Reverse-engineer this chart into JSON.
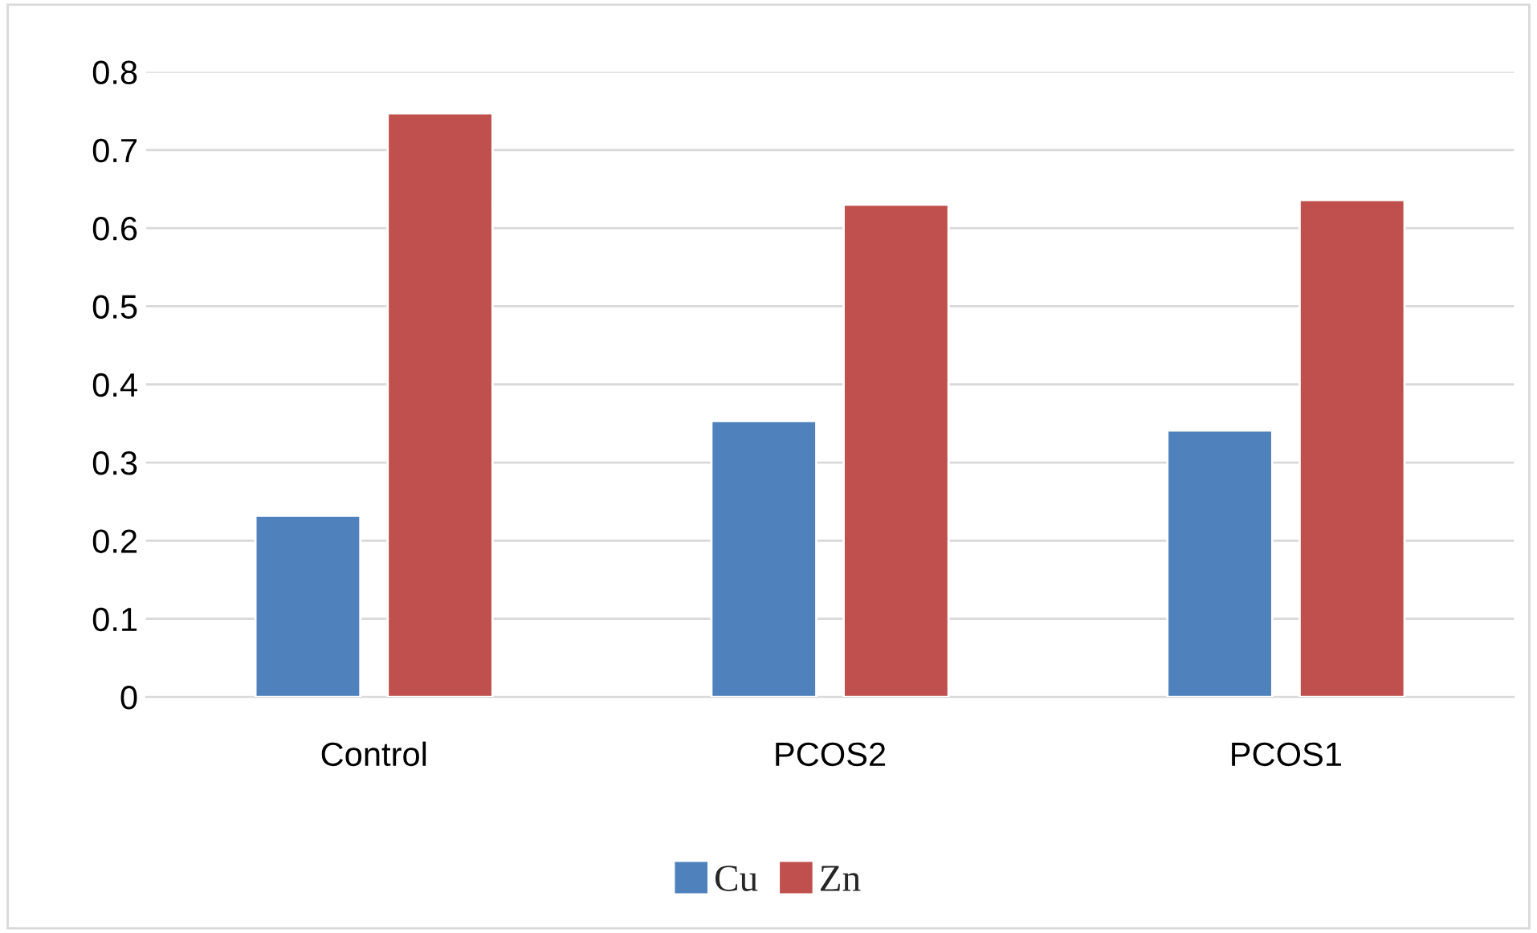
{
  "chart_data": {
    "type": "bar",
    "categories": [
      "Control",
      "PCOS2",
      "PCOS1"
    ],
    "series": [
      {
        "name": "Cu",
        "color": "#4f81bd",
        "values": [
          0.232,
          0.353,
          0.341
        ]
      },
      {
        "name": "Zn",
        "color": "#c0504d",
        "values": [
          0.747,
          0.63,
          0.636
        ]
      }
    ],
    "ylim": [
      0,
      0.8
    ],
    "yticks": [
      0,
      0.1,
      0.2,
      0.3,
      0.4,
      0.5,
      0.6,
      0.7,
      0.8
    ],
    "grid": "y",
    "legend": "bottom"
  }
}
